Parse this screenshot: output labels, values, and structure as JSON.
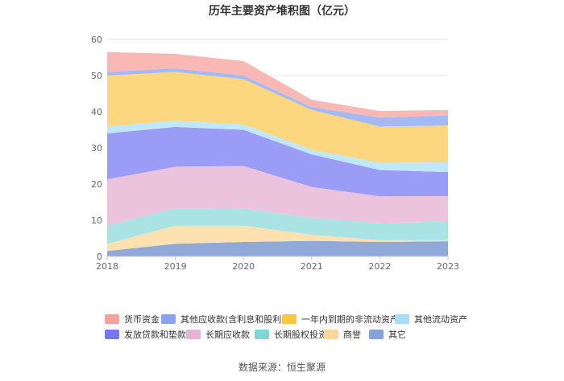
{
  "chart_data": {
    "type": "area",
    "title": "历年主要资产堆积图（亿元）",
    "source": "数据来源：恒生聚源",
    "x": [
      "2018",
      "2019",
      "2020",
      "2021",
      "2022",
      "2023"
    ],
    "ylim": [
      0,
      60
    ],
    "yticks": [
      "0",
      "10",
      "20",
      "30",
      "40",
      "50",
      "60"
    ],
    "grid": true,
    "legend_position": "bottom",
    "series": [
      {
        "name": "其它",
        "color": "#90a9d9",
        "values": [
          1.5,
          3.5,
          4.0,
          4.3,
          4.0,
          4.2
        ]
      },
      {
        "name": "商誉",
        "color": "#fde1b0",
        "values": [
          2.0,
          5.0,
          4.5,
          1.7,
          0.5,
          0.3
        ]
      },
      {
        "name": "长期股权投资",
        "color": "#a9e3e3",
        "values": [
          5.0,
          4.8,
          4.7,
          4.7,
          4.7,
          5.2
        ]
      },
      {
        "name": "长期应收款",
        "color": "#ebc3dd",
        "values": [
          12.8,
          11.5,
          11.8,
          8.5,
          7.4,
          7.0
        ]
      },
      {
        "name": "发放贷款和垫款",
        "color": "#9a9cf5",
        "values": [
          12.7,
          11.0,
          10.0,
          9.0,
          7.3,
          6.6
        ]
      },
      {
        "name": "其他流动资产",
        "color": "#bfe8fb",
        "values": [
          2.0,
          1.7,
          1.5,
          1.3,
          2.0,
          2.7
        ]
      },
      {
        "name": "一年内到期的非流动资产",
        "color": "#fdd77f",
        "values": [
          14.0,
          13.5,
          12.5,
          11.0,
          10.0,
          10.2
        ]
      },
      {
        "name": "其他应收款(含利息和股利)",
        "color": "#a5b9f5",
        "values": [
          1.0,
          1.0,
          1.0,
          0.8,
          2.5,
          2.8
        ]
      },
      {
        "name": "货币资金",
        "color": "#f9b8b4",
        "values": [
          5.5,
          4.0,
          4.0,
          2.0,
          1.8,
          1.5
        ]
      }
    ],
    "legend": [
      {
        "name": "货币资金",
        "color": "#f4a39c"
      },
      {
        "name": "其他应收款(含利息和股利)",
        "color": "#8aa2f0"
      },
      {
        "name": "一年内到期的非流动资产",
        "color": "#fcc63f"
      },
      {
        "name": "其他流动资产",
        "color": "#a8dcf8"
      },
      {
        "name": "发放贷款和垫款",
        "color": "#7678f0"
      },
      {
        "name": "长期应收款",
        "color": "#e6b3d7"
      },
      {
        "name": "长期股权投资",
        "color": "#7fd6d6"
      },
      {
        "name": "商誉",
        "color": "#fcd69b"
      },
      {
        "name": "其它",
        "color": "#84a3d8"
      }
    ]
  }
}
